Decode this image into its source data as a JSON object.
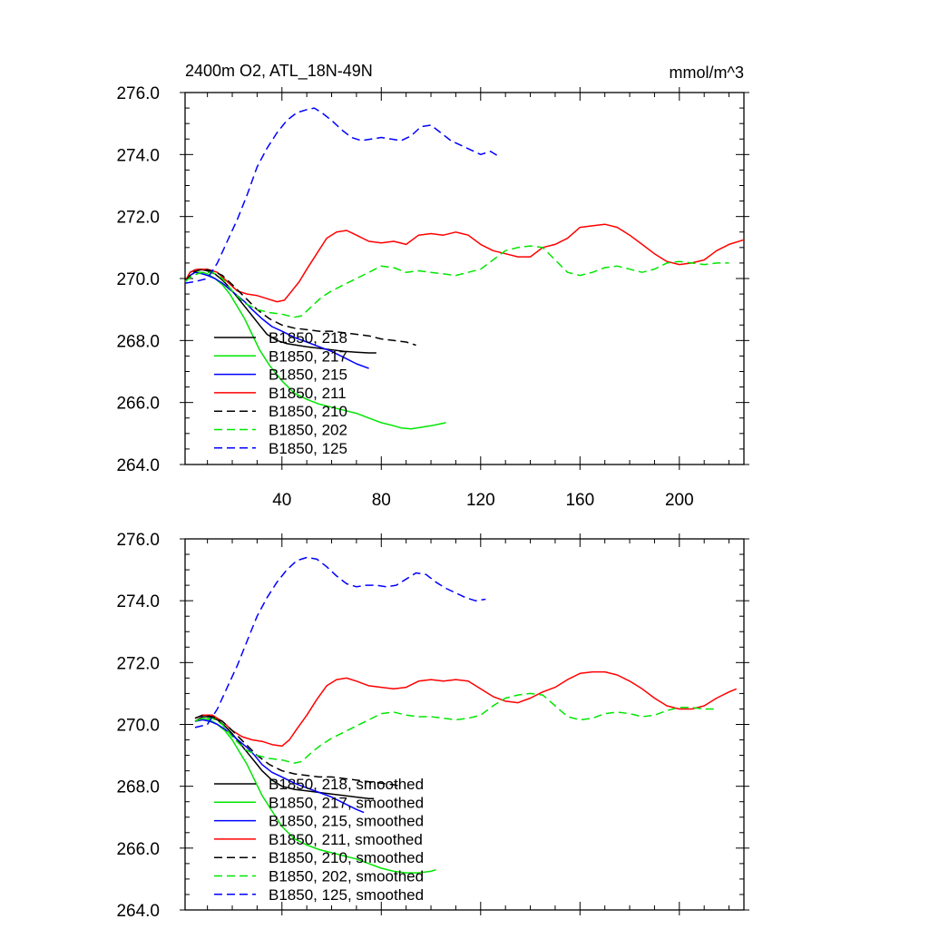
{
  "colors": {
    "black": "#000000",
    "green": "#00e600",
    "blue": "#0000ff",
    "red": "#ff0000"
  },
  "header": {
    "title": "2400m O2, ATL_18N-49N",
    "units": "mmol/m^3"
  },
  "chart_data": [
    {
      "type": "line",
      "title": "2400m O2, ATL_18N-49N",
      "units_label": "mmol/m^3",
      "xlim": [
        1,
        226
      ],
      "ylim": [
        264,
        276
      ],
      "yticks": [
        "264.0",
        "266.0",
        "268.0",
        "270.0",
        "272.0",
        "274.0",
        "276.0"
      ],
      "xticks": [
        "40",
        "80",
        "120",
        "160",
        "200"
      ],
      "xtick_values": [
        40,
        80,
        120,
        160,
        200
      ],
      "legend_position": "bottom-left",
      "series": [
        {
          "name": "B1850, 218",
          "color": "black",
          "dash": false,
          "x": [
            1,
            3,
            5,
            8,
            10,
            13,
            16,
            19,
            22,
            25,
            28,
            31,
            34,
            38,
            42,
            46,
            50,
            55,
            60,
            65,
            70,
            75,
            78
          ],
          "y": [
            269.9,
            270.2,
            270.28,
            270.28,
            270.25,
            270.15,
            269.95,
            269.7,
            269.4,
            269.1,
            268.8,
            268.5,
            268.2,
            268.0,
            267.9,
            267.85,
            267.8,
            267.75,
            267.7,
            267.65,
            267.62,
            267.6,
            267.6
          ]
        },
        {
          "name": "B1850, 217",
          "color": "green",
          "dash": false,
          "x": [
            1,
            3,
            5,
            8,
            10,
            13,
            16,
            19,
            22,
            25,
            28,
            31,
            35,
            40,
            45,
            50,
            55,
            60,
            65,
            70,
            75,
            80,
            85,
            88,
            92,
            96,
            100,
            103,
            106
          ],
          "y": [
            269.9,
            270.1,
            270.2,
            270.2,
            270.15,
            270.0,
            269.8,
            269.5,
            269.1,
            268.7,
            268.2,
            267.7,
            267.2,
            266.7,
            266.3,
            266.1,
            265.95,
            265.85,
            265.75,
            265.65,
            265.5,
            265.35,
            265.25,
            265.18,
            265.15,
            265.2,
            265.25,
            265.3,
            265.35
          ]
        },
        {
          "name": "B1850, 215",
          "color": "blue",
          "dash": false,
          "x": [
            1,
            3,
            5,
            8,
            10,
            13,
            16,
            19,
            22,
            25,
            28,
            32,
            36,
            40,
            45,
            50,
            55,
            60,
            65,
            70,
            75
          ],
          "y": [
            269.9,
            270.1,
            270.2,
            270.15,
            270.1,
            270.0,
            269.85,
            269.65,
            269.45,
            269.25,
            269.0,
            268.7,
            268.45,
            268.3,
            268.1,
            267.95,
            267.8,
            267.65,
            267.45,
            267.25,
            267.1
          ]
        },
        {
          "name": "B1850, 211",
          "color": "red",
          "dash": false,
          "x": [
            1,
            3,
            6,
            10,
            14,
            18,
            22,
            26,
            30,
            34,
            38,
            41,
            44,
            47,
            50,
            54,
            58,
            62,
            66,
            70,
            75,
            80,
            85,
            90,
            95,
            100,
            105,
            110,
            115,
            120,
            125,
            130,
            135,
            140,
            145,
            150,
            155,
            160,
            165,
            170,
            175,
            180,
            185,
            190,
            195,
            200,
            205,
            210,
            215,
            220,
            226
          ],
          "y": [
            269.9,
            270.2,
            270.3,
            270.3,
            270.2,
            269.9,
            269.6,
            269.5,
            269.45,
            269.35,
            269.25,
            269.3,
            269.6,
            269.9,
            270.3,
            270.8,
            271.3,
            271.5,
            271.55,
            271.4,
            271.2,
            271.15,
            271.2,
            271.1,
            271.4,
            271.45,
            271.4,
            271.5,
            271.4,
            271.1,
            270.9,
            270.8,
            270.7,
            270.7,
            271.0,
            271.1,
            271.3,
            271.65,
            271.7,
            271.75,
            271.65,
            271.4,
            271.1,
            270.8,
            270.55,
            270.45,
            270.5,
            270.6,
            270.9,
            271.1,
            271.25
          ]
        },
        {
          "name": "B1850, 210",
          "color": "black",
          "dash": true,
          "x": [
            1,
            4,
            8,
            12,
            16,
            20,
            25,
            30,
            35,
            40,
            45,
            50,
            55,
            60,
            65,
            70,
            75,
            80,
            85,
            90,
            94
          ],
          "y": [
            269.9,
            270.2,
            270.3,
            270.25,
            270.1,
            269.8,
            269.4,
            269.0,
            268.7,
            268.5,
            268.4,
            268.35,
            268.3,
            268.3,
            268.25,
            268.2,
            268.15,
            268.05,
            268.0,
            267.95,
            267.85
          ]
        },
        {
          "name": "B1850, 202",
          "color": "green",
          "dash": true,
          "x": [
            1,
            4,
            8,
            12,
            16,
            20,
            25,
            30,
            35,
            40,
            45,
            48,
            52,
            56,
            60,
            65,
            70,
            75,
            80,
            85,
            90,
            95,
            100,
            105,
            110,
            115,
            120,
            125,
            130,
            135,
            140,
            145,
            150,
            155,
            160,
            165,
            170,
            175,
            180,
            185,
            190,
            195,
            200,
            205,
            210,
            215,
            220
          ],
          "y": [
            269.9,
            270.1,
            270.2,
            270.2,
            270.0,
            269.6,
            269.2,
            269.0,
            268.9,
            268.85,
            268.75,
            268.8,
            269.1,
            269.4,
            269.6,
            269.8,
            270.0,
            270.2,
            270.4,
            270.35,
            270.2,
            270.25,
            270.2,
            270.15,
            270.1,
            270.2,
            270.3,
            270.6,
            270.9,
            271.0,
            271.05,
            271.0,
            270.6,
            270.2,
            270.1,
            270.2,
            270.35,
            270.4,
            270.3,
            270.2,
            270.3,
            270.5,
            270.55,
            270.5,
            270.45,
            270.5,
            270.5
          ]
        },
        {
          "name": "B1850, 125",
          "color": "blue",
          "dash": true,
          "x": [
            1,
            5,
            10,
            14,
            18,
            22,
            26,
            30,
            34,
            38,
            42,
            46,
            50,
            53,
            56,
            60,
            64,
            68,
            72,
            76,
            80,
            84,
            88,
            92,
            96,
            100,
            104,
            108,
            112,
            116,
            120,
            124,
            127
          ],
          "y": [
            269.85,
            269.9,
            270.0,
            270.5,
            271.2,
            271.9,
            272.7,
            273.6,
            274.2,
            274.7,
            275.1,
            275.35,
            275.45,
            275.5,
            275.35,
            275.1,
            274.8,
            274.55,
            274.45,
            274.5,
            274.55,
            274.5,
            274.45,
            274.6,
            274.9,
            274.95,
            274.7,
            274.45,
            274.3,
            274.15,
            274.0,
            274.1,
            273.95
          ]
        }
      ]
    },
    {
      "type": "line",
      "xlim": [
        1,
        226
      ],
      "ylim": [
        264,
        276
      ],
      "yticks": [
        "264.0",
        "266.0",
        "268.0",
        "270.0",
        "272.0",
        "274.0",
        "276.0"
      ],
      "xtick_values": [
        40,
        80,
        120,
        160,
        200
      ],
      "legend_position": "bottom-left",
      "series": [
        {
          "name": "B1850, 218, smoothed",
          "color": "black",
          "dash": false,
          "x": [
            5,
            8,
            11,
            14,
            17,
            20,
            23,
            26,
            29,
            32,
            36,
            40,
            45,
            50,
            55,
            60,
            65,
            70,
            75,
            77
          ],
          "y": [
            270.1,
            270.25,
            270.25,
            270.15,
            269.95,
            269.7,
            269.4,
            269.1,
            268.8,
            268.5,
            268.2,
            268.0,
            267.9,
            267.85,
            267.8,
            267.75,
            267.7,
            267.65,
            267.6,
            267.6
          ]
        },
        {
          "name": "B1850, 217, smoothed",
          "color": "green",
          "dash": false,
          "x": [
            5,
            8,
            11,
            14,
            17,
            20,
            23,
            26,
            29,
            32,
            36,
            40,
            45,
            50,
            55,
            60,
            65,
            70,
            75,
            80,
            85,
            90,
            95,
            100,
            102
          ],
          "y": [
            270.1,
            270.2,
            270.15,
            270.0,
            269.8,
            269.5,
            269.1,
            268.7,
            268.2,
            267.7,
            267.2,
            266.7,
            266.3,
            266.1,
            265.95,
            265.85,
            265.75,
            265.65,
            265.5,
            265.35,
            265.25,
            265.2,
            265.2,
            265.25,
            265.3
          ]
        },
        {
          "name": "B1850, 215, smoothed",
          "color": "blue",
          "dash": false,
          "x": [
            5,
            8,
            11,
            14,
            17,
            20,
            23,
            26,
            29,
            32,
            36,
            40,
            45,
            50,
            55,
            60,
            65,
            70,
            73
          ],
          "y": [
            270.1,
            270.15,
            270.1,
            270.0,
            269.85,
            269.65,
            269.45,
            269.25,
            269.0,
            268.7,
            268.45,
            268.3,
            268.1,
            267.95,
            267.8,
            267.65,
            267.45,
            267.25,
            267.15
          ]
        },
        {
          "name": "B1850, 211, smoothed",
          "color": "red",
          "dash": false,
          "x": [
            5,
            8,
            12,
            16,
            20,
            24,
            28,
            32,
            36,
            40,
            43,
            46,
            50,
            54,
            58,
            62,
            66,
            70,
            75,
            80,
            85,
            90,
            95,
            100,
            105,
            110,
            115,
            120,
            125,
            130,
            135,
            140,
            145,
            150,
            155,
            160,
            165,
            170,
            175,
            180,
            185,
            190,
            195,
            200,
            205,
            210,
            215,
            220,
            223
          ],
          "y": [
            270.2,
            270.3,
            270.3,
            270.1,
            269.8,
            269.6,
            269.5,
            269.45,
            269.35,
            269.3,
            269.5,
            269.85,
            270.3,
            270.8,
            271.25,
            271.45,
            271.5,
            271.4,
            271.25,
            271.2,
            271.15,
            271.2,
            271.4,
            271.45,
            271.4,
            271.45,
            271.4,
            271.15,
            270.9,
            270.75,
            270.7,
            270.85,
            271.05,
            271.2,
            271.45,
            271.65,
            271.7,
            271.7,
            271.6,
            271.4,
            271.15,
            270.85,
            270.6,
            270.5,
            270.5,
            270.6,
            270.85,
            271.05,
            271.15
          ]
        },
        {
          "name": "B1850, 210, smoothed",
          "color": "black",
          "dash": true,
          "x": [
            5,
            8,
            12,
            16,
            20,
            25,
            30,
            35,
            40,
            45,
            50,
            55,
            60,
            65,
            70,
            75,
            80,
            85,
            88
          ],
          "y": [
            270.2,
            270.3,
            270.25,
            270.1,
            269.8,
            269.4,
            269.0,
            268.7,
            268.5,
            268.4,
            268.35,
            268.3,
            268.3,
            268.25,
            268.2,
            268.15,
            268.1,
            268.05,
            268.0
          ]
        },
        {
          "name": "B1850, 202, smoothed",
          "color": "green",
          "dash": true,
          "x": [
            5,
            8,
            12,
            16,
            20,
            25,
            30,
            35,
            40,
            45,
            48,
            52,
            56,
            60,
            65,
            70,
            75,
            80,
            85,
            90,
            95,
            100,
            105,
            110,
            115,
            120,
            125,
            130,
            135,
            140,
            145,
            150,
            155,
            160,
            165,
            170,
            175,
            180,
            185,
            190,
            195,
            200,
            205,
            210,
            215
          ],
          "y": [
            270.1,
            270.2,
            270.2,
            270.0,
            269.6,
            269.2,
            269.0,
            268.9,
            268.85,
            268.75,
            268.8,
            269.1,
            269.35,
            269.55,
            269.75,
            269.95,
            270.15,
            270.35,
            270.4,
            270.3,
            270.25,
            270.25,
            270.2,
            270.15,
            270.2,
            270.3,
            270.6,
            270.85,
            270.95,
            271.0,
            270.95,
            270.6,
            270.25,
            270.15,
            270.2,
            270.35,
            270.4,
            270.35,
            270.25,
            270.3,
            270.45,
            270.55,
            270.55,
            270.5,
            270.5
          ]
        },
        {
          "name": "B1850, 125, smoothed",
          "color": "blue",
          "dash": true,
          "x": [
            5,
            10,
            14,
            18,
            22,
            26,
            30,
            34,
            38,
            42,
            46,
            50,
            54,
            58,
            62,
            66,
            70,
            74,
            78,
            82,
            86,
            90,
            94,
            98,
            102,
            106,
            110,
            114,
            118,
            122
          ],
          "y": [
            269.9,
            270.0,
            270.5,
            271.2,
            271.9,
            272.7,
            273.5,
            274.1,
            274.6,
            275.0,
            275.3,
            275.4,
            275.35,
            275.1,
            274.8,
            274.55,
            274.45,
            274.5,
            274.5,
            274.45,
            274.5,
            274.7,
            274.9,
            274.85,
            274.6,
            274.4,
            274.25,
            274.1,
            274.0,
            274.05
          ]
        }
      ]
    }
  ]
}
